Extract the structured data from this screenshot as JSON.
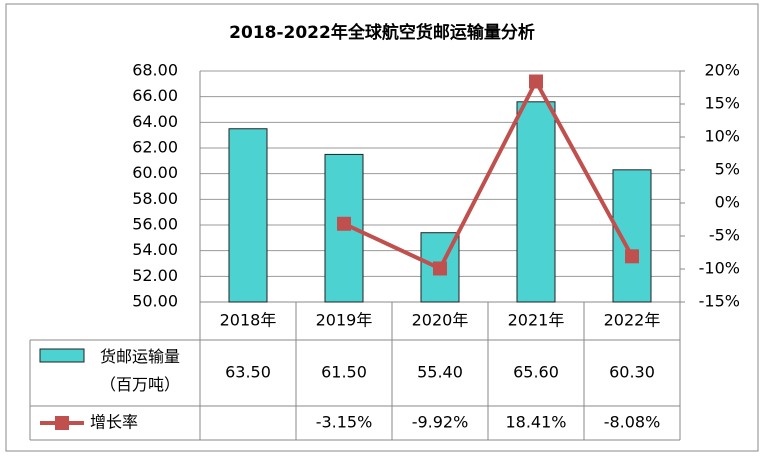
{
  "chart_data": {
    "type": "bar",
    "title": "2018-2022年全球航空货邮运输量分析",
    "categories": [
      "2018年",
      "2019年",
      "2020年",
      "2021年",
      "2022年"
    ],
    "series": [
      {
        "name": "货邮运输量（百万吨）",
        "type": "bar",
        "color": "#4dd2d2",
        "values": [
          63.5,
          61.5,
          55.4,
          65.6,
          60.3
        ],
        "value_labels": [
          "63.50",
          "61.50",
          "55.40",
          "65.60",
          "60.30"
        ]
      },
      {
        "name": "增长率",
        "type": "line",
        "axis": "y2",
        "color": "#c0504d",
        "values": [
          null,
          -3.15,
          -9.92,
          18.41,
          -8.08
        ],
        "value_labels": [
          null,
          "-3.15%",
          "-9.92%",
          "18.41%",
          "-8.08%"
        ]
      }
    ],
    "ylim": [
      50,
      68
    ],
    "yticks": [
      {
        "value": 50,
        "label": "50.00"
      },
      {
        "value": 52,
        "label": "52.00"
      },
      {
        "value": 54,
        "label": "54.00"
      },
      {
        "value": 56,
        "label": "56.00"
      },
      {
        "value": 58,
        "label": "58.00"
      },
      {
        "value": 60,
        "label": "60.00"
      },
      {
        "value": 62,
        "label": "62.00"
      },
      {
        "value": 64,
        "label": "64.00"
      },
      {
        "value": 66,
        "label": "66.00"
      },
      {
        "value": 68,
        "label": "68.00"
      }
    ],
    "y2lim": [
      -15,
      20
    ],
    "y2ticks": [
      {
        "value": -15,
        "label": "-15%"
      },
      {
        "value": -10,
        "label": "-10%"
      },
      {
        "value": -5,
        "label": "-5%"
      },
      {
        "value": 0,
        "label": "0%"
      },
      {
        "value": 5,
        "label": "5%"
      },
      {
        "value": 10,
        "label": "10%"
      },
      {
        "value": 15,
        "label": "15%"
      },
      {
        "value": 20,
        "label": "20%"
      }
    ],
    "grid": true
  }
}
